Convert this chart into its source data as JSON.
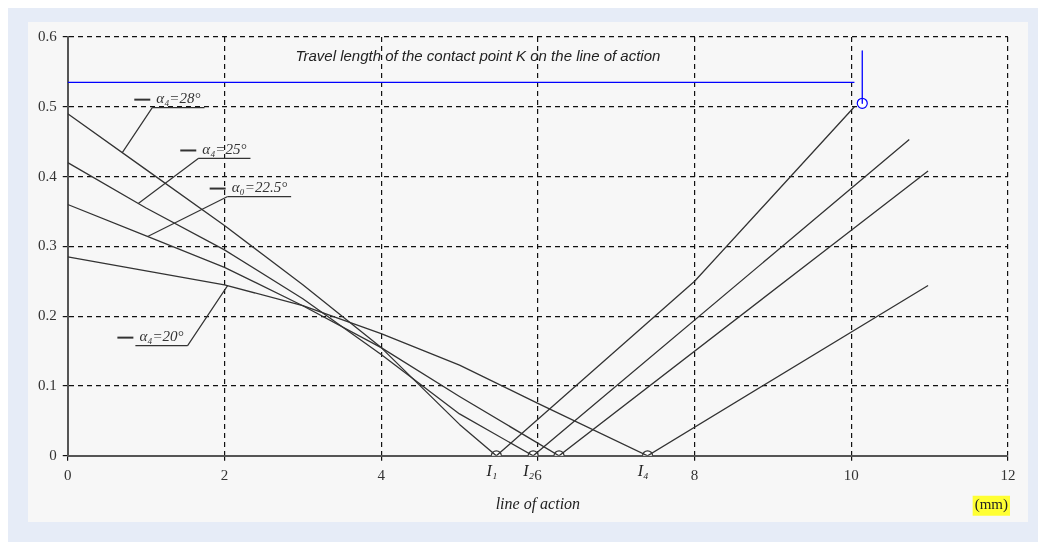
{
  "chart_data": {
    "type": "line",
    "xlabel": "line of action",
    "xlim": [
      0,
      12
    ],
    "xticks": [
      0,
      2,
      4,
      6,
      8,
      10,
      12
    ],
    "ylim": [
      0,
      0.6
    ],
    "yticks": [
      0,
      0.1,
      0.2,
      0.3,
      0.4,
      0.5,
      0.6
    ],
    "grid": true,
    "legend": "top left",
    "marker": "none",
    "line_style": "solid",
    "annotations": [
      "Travel length of the contact point K on the line of action",
      {
        "text": "I₁",
        "x": 5.47,
        "y": 0
      },
      {
        "text": "I₂",
        "x": 5.94,
        "y": 0
      },
      {
        "text": "I₄",
        "x": 7.4,
        "y": 0
      },
      "(mm)"
    ],
    "series": [
      {
        "name": "α₄=28°",
        "color": "#333333",
        "x": [
          0,
          1,
          2,
          3,
          4,
          5,
          5.47,
          8,
          10.04
        ],
        "values": [
          0.49,
          0.41,
          0.33,
          0.245,
          0.155,
          0.045,
          0,
          0.25,
          0.5
        ]
      },
      {
        "name": "α₄=25°",
        "color": "#333333",
        "x": [
          0,
          1,
          2,
          3,
          4,
          5,
          5.94,
          10.74
        ],
        "values": [
          0.42,
          0.355,
          0.295,
          0.225,
          0.145,
          0.06,
          0,
          0.453
        ]
      },
      {
        "name": "α₀=22.5°",
        "color": "#333333",
        "x": [
          0,
          1,
          2,
          3,
          4,
          5,
          6.27,
          10.98
        ],
        "values": [
          0.36,
          0.315,
          0.27,
          0.215,
          0.155,
          0.085,
          0,
          0.408
        ]
      },
      {
        "name": "α₄=20°",
        "color": "#333333",
        "x": [
          0,
          1,
          2,
          3,
          4,
          5,
          6,
          7.4,
          10.98
        ],
        "values": [
          0.285,
          0.265,
          0.245,
          0.215,
          0.175,
          0.13,
          0.075,
          0,
          0.244
        ]
      },
      {
        "type": "scatter",
        "marker": "circle",
        "color": "#333333",
        "x": [
          5.47,
          5.94,
          6.27,
          7.4
        ],
        "values": [
          0,
          0,
          0,
          0
        ]
      },
      {
        "color": "#0000ff",
        "x": [
          0,
          10.04
        ],
        "values": [
          0.535,
          0.535
        ]
      },
      {
        "color": "#0000ff",
        "x": [
          10.14,
          10.14
        ],
        "values": [
          0.58,
          0.505
        ]
      },
      {
        "type": "scatter",
        "marker": "circle",
        "color": "#0000ff",
        "x": [
          10.14
        ],
        "values": [
          0.505
        ]
      }
    ]
  }
}
